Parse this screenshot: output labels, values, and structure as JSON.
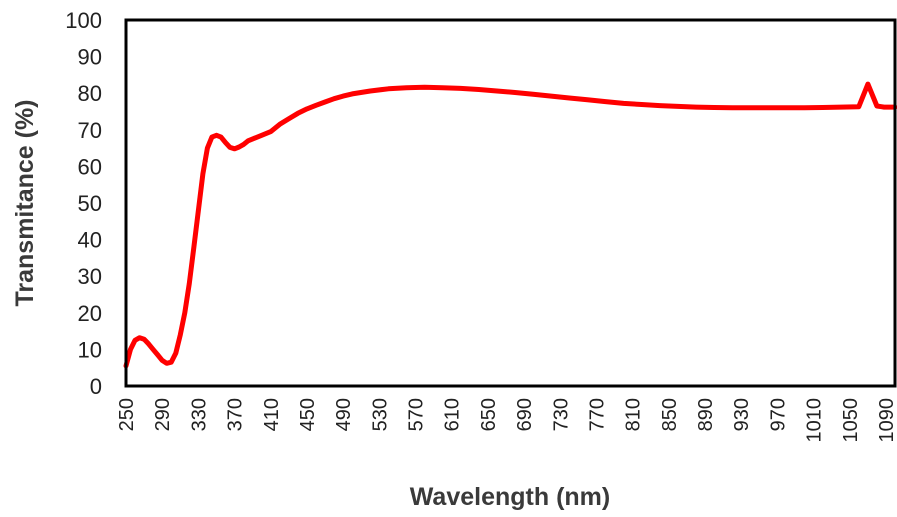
{
  "chart_data": {
    "type": "line",
    "xlabel": "Wavelength (nm)",
    "ylabel": "Transmitance (%)",
    "xlim": [
      250,
      1100
    ],
    "ylim": [
      0,
      100
    ],
    "x_ticks": [
      "250",
      "290",
      "330",
      "370",
      "410",
      "450",
      "490",
      "530",
      "570",
      "610",
      "650",
      "690",
      "730",
      "770",
      "810",
      "850",
      "890",
      "930",
      "970",
      "1010",
      "1050",
      "1090"
    ],
    "y_ticks": [
      "0",
      "10",
      "20",
      "30",
      "40",
      "50",
      "60",
      "70",
      "80",
      "90",
      "100"
    ],
    "grid": false,
    "legend": "none",
    "series": [
      {
        "color": "#ff0000",
        "x": [
          250,
          255,
          260,
          265,
          270,
          275,
          280,
          285,
          290,
          295,
          300,
          305,
          310,
          315,
          320,
          325,
          330,
          335,
          340,
          345,
          350,
          355,
          360,
          365,
          370,
          375,
          380,
          385,
          390,
          400,
          410,
          420,
          430,
          440,
          450,
          460,
          470,
          480,
          490,
          500,
          520,
          540,
          560,
          580,
          600,
          620,
          640,
          660,
          680,
          700,
          720,
          740,
          760,
          780,
          800,
          820,
          840,
          860,
          880,
          900,
          920,
          940,
          960,
          980,
          1000,
          1020,
          1040,
          1060,
          1070,
          1080,
          1085,
          1088,
          1090,
          1092,
          1095,
          1100
        ],
        "y": [
          5.5,
          10,
          12.5,
          13.2,
          12.8,
          11.5,
          10,
          8.5,
          7,
          6.2,
          6.5,
          9,
          14,
          20,
          28,
          38,
          48,
          58,
          65,
          68,
          68.5,
          68,
          66.5,
          65.2,
          64.8,
          65.3,
          66,
          67,
          67.5,
          68.5,
          69.5,
          71.5,
          73,
          74.5,
          75.7,
          76.7,
          77.6,
          78.5,
          79.2,
          79.8,
          80.6,
          81.2,
          81.5,
          81.6,
          81.5,
          81.3,
          81,
          80.6,
          80.2,
          79.7,
          79.2,
          78.7,
          78.2,
          77.7,
          77.2,
          76.9,
          76.6,
          76.4,
          76.2,
          76.1,
          76,
          76,
          76,
          76,
          76,
          76.1,
          76.2,
          76.3,
          82.5,
          76.5,
          76.3,
          76.2,
          76.2,
          76.2,
          76.2,
          76.2
        ]
      }
    ]
  }
}
